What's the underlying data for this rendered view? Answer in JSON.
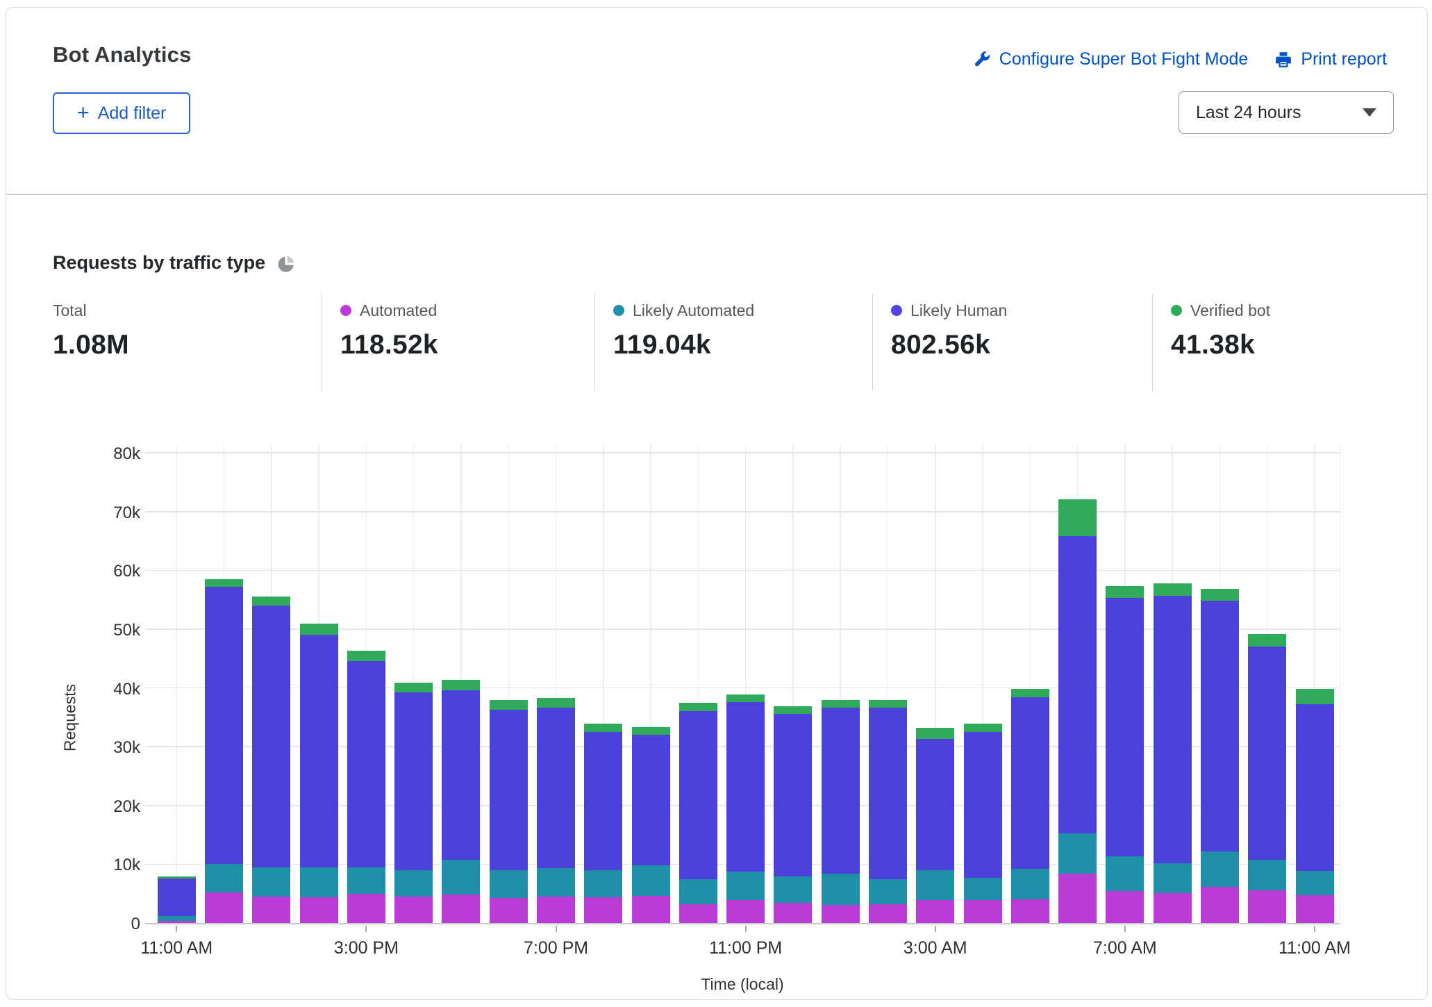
{
  "header": {
    "title": "Bot Analytics",
    "configure_link": "Configure Super Bot Fight Mode",
    "print_link": "Print report",
    "add_filter_plus": "+",
    "add_filter_label": "Add filter",
    "time_range_value": "Last 24 hours"
  },
  "section": {
    "title": "Requests by traffic type"
  },
  "stats": [
    {
      "label": "Total",
      "value": "1.08M",
      "color": null
    },
    {
      "label": "Automated",
      "value": "118.52k",
      "color": "#bb3cd8"
    },
    {
      "label": "Likely Automated",
      "value": "119.04k",
      "color": "#2090a8"
    },
    {
      "label": "Likely Human",
      "value": "802.56k",
      "color": "#5244e0"
    },
    {
      "label": "Verified bot",
      "value": "41.38k",
      "color": "#2fa95a"
    }
  ],
  "chart_data": {
    "type": "bar",
    "stacked": true,
    "title": "Requests by traffic type",
    "xlabel": "Time (local)",
    "ylabel": "Requests",
    "ylim": [
      0,
      80000
    ],
    "values_unit": "thousands of requests",
    "num_bars": 25,
    "grid": true,
    "y_ticks": [
      "0",
      "10k",
      "20k",
      "30k",
      "40k",
      "50k",
      "60k",
      "70k",
      "80k"
    ],
    "x_tick_labels": [
      "11:00 AM",
      "3:00 PM",
      "7:00 PM",
      "11:00 PM",
      "3:00 AM",
      "7:00 AM",
      "11:00 AM"
    ],
    "x_tick_bar_indexes": [
      0,
      4,
      8,
      12,
      16,
      20,
      24
    ],
    "legend_position": "top (stats row)",
    "series": [
      {
        "name": "Automated",
        "color": "#b93cd6",
        "values": [
          0.4,
          5.2,
          4.5,
          4.4,
          5.0,
          4.5,
          4.9,
          4.2,
          4.5,
          4.4,
          4.6,
          3.2,
          3.9,
          3.4,
          3.1,
          3.2,
          3.9,
          3.9,
          4.0,
          8.4,
          5.4,
          5.1,
          6.2,
          5.6,
          4.7
        ]
      },
      {
        "name": "Likely Automated",
        "color": "#2090a8",
        "values": [
          0.8,
          4.9,
          5.0,
          5.0,
          4.5,
          4.5,
          5.9,
          4.8,
          4.8,
          4.6,
          5.2,
          4.3,
          4.9,
          4.5,
          5.3,
          4.3,
          5.1,
          3.8,
          5.2,
          6.9,
          5.9,
          5.1,
          6.0,
          5.1,
          4.2
        ]
      },
      {
        "name": "Likely Human",
        "color": "#4b40d9",
        "values": [
          6.4,
          47.1,
          44.5,
          39.6,
          35.1,
          30.2,
          28.8,
          27.3,
          27.3,
          23.5,
          22.2,
          28.6,
          28.8,
          27.7,
          28.3,
          29.1,
          22.3,
          24.8,
          29.2,
          50.6,
          44.0,
          45.5,
          42.7,
          36.4,
          28.3
        ]
      },
      {
        "name": "Verified bot",
        "color": "#2fa95a",
        "values": [
          0.3,
          1.3,
          1.5,
          1.9,
          1.7,
          1.7,
          1.8,
          1.6,
          1.7,
          1.4,
          1.3,
          1.4,
          1.3,
          1.3,
          1.2,
          1.4,
          1.9,
          1.4,
          1.4,
          6.2,
          2.0,
          2.1,
          2.0,
          2.1,
          2.6
        ]
      }
    ]
  }
}
